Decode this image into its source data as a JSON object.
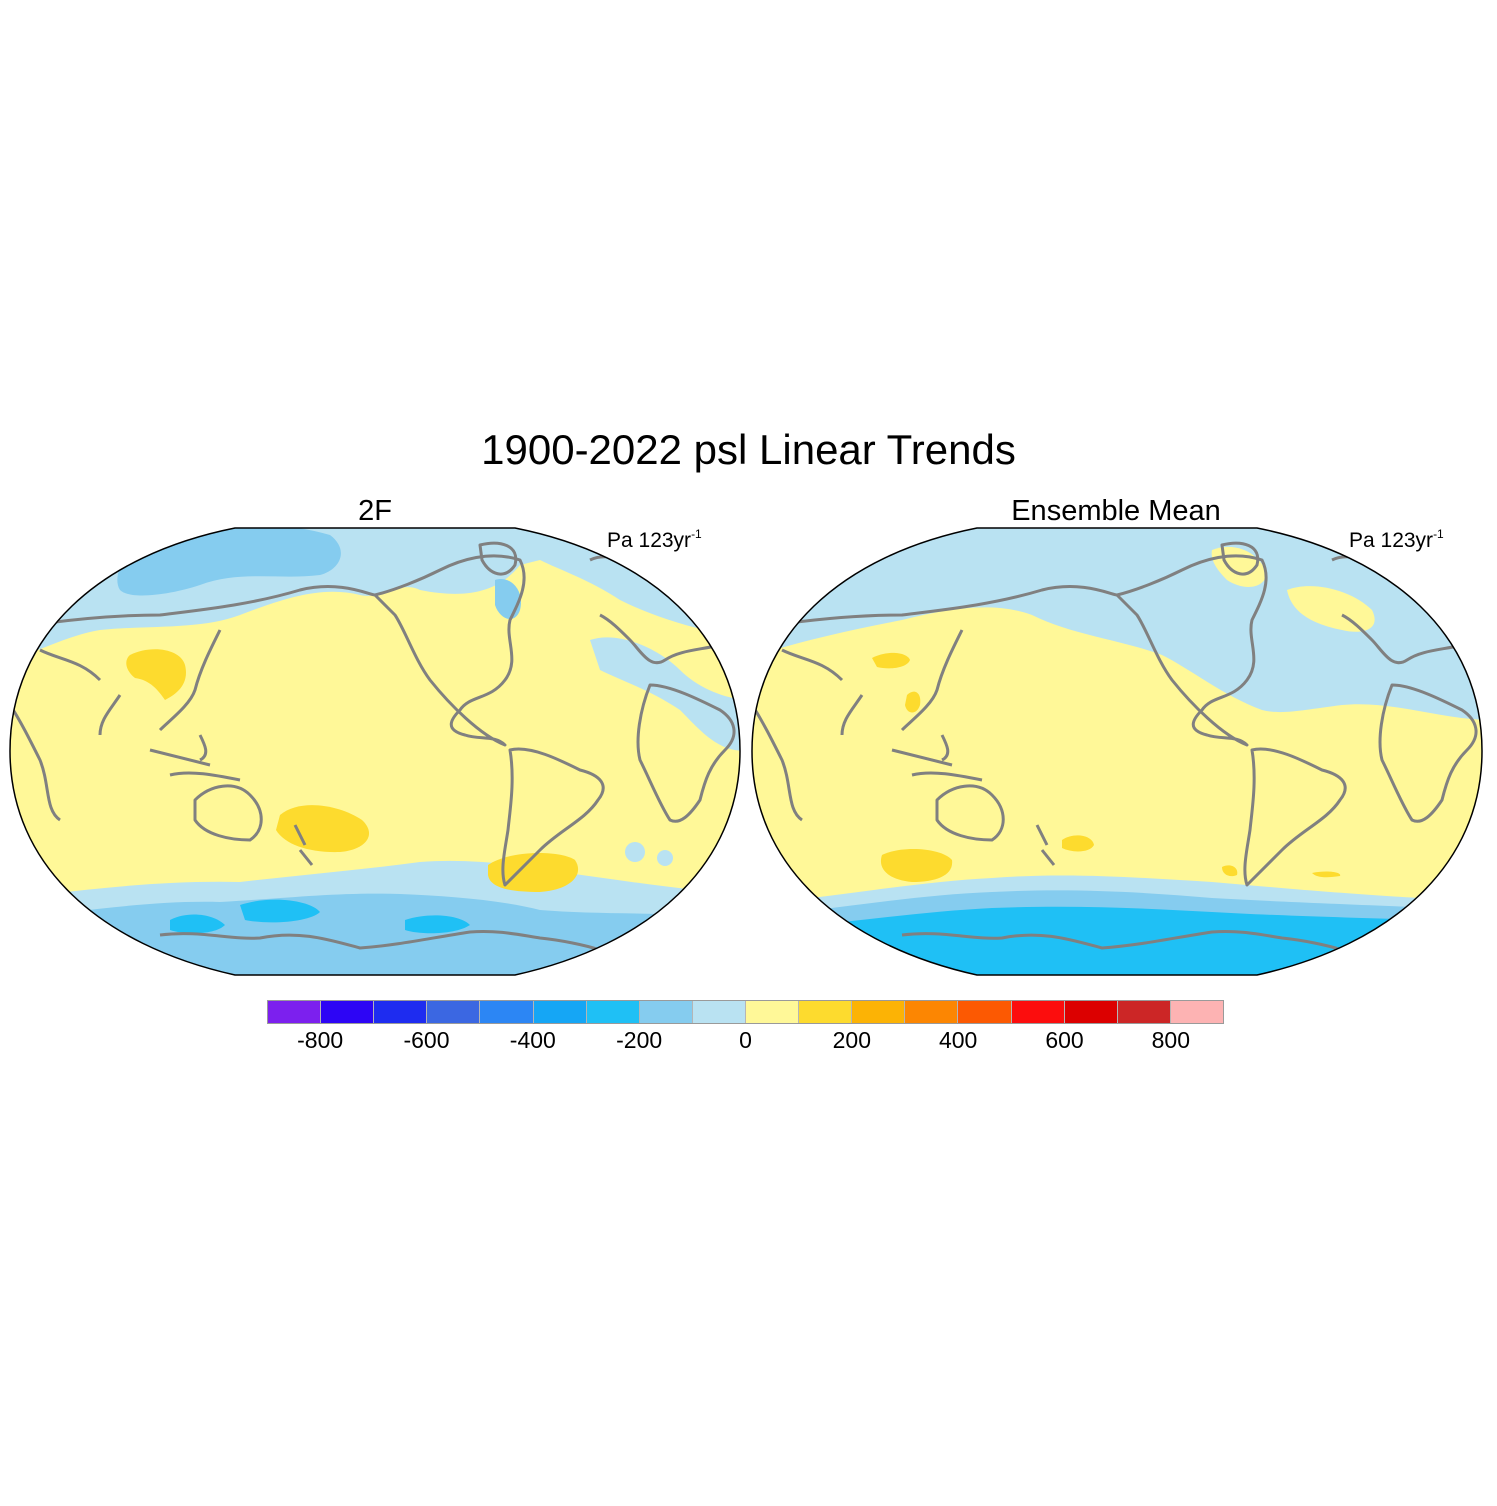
{
  "title": "1900-2022 psl Linear Trends",
  "panels": [
    {
      "title": "2F",
      "units_base": "Pa 123yr",
      "units_exp": "-1"
    },
    {
      "title": "Ensemble Mean",
      "units_base": "Pa 123yr",
      "units_exp": "-1"
    }
  ],
  "colorbar": {
    "colors": [
      "#7c20ee",
      "#2d05f5",
      "#1e2cf0",
      "#3b67e2",
      "#2c86f4",
      "#15a6f5",
      "#1fc0f5",
      "#85ccef",
      "#b9e2f2",
      "#fff898",
      "#fddb2e",
      "#fcb305",
      "#fc8602",
      "#fc5902",
      "#fc0d0d",
      "#dc0000",
      "#cc2626",
      "#fdb3b3"
    ],
    "tick_labels": [
      "-800",
      "-600",
      "-400",
      "-200",
      "0",
      "200",
      "400",
      "600",
      "800"
    ]
  },
  "map_colors": {
    "ocean_yellow": "#fff898",
    "yellow_strong": "#fddb2e",
    "blue_light": "#b9e2f2",
    "blue_mid": "#85ccef",
    "blue_strong": "#1fc0f5",
    "coast": "#808080"
  }
}
